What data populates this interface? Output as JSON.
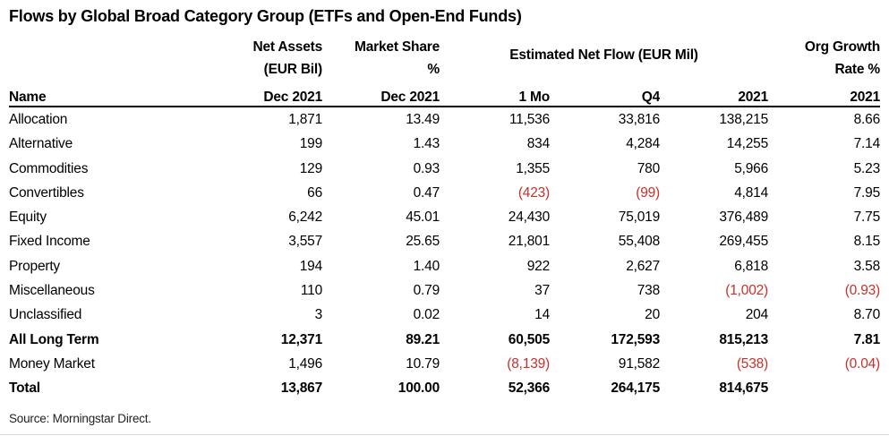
{
  "title": "Flows by Global Broad Category Group (ETFs and Open-End Funds)",
  "colors": {
    "negative": "#c8302c",
    "text": "#000000",
    "header_rule": "#000000",
    "bottom_rule": "#d9d9d9"
  },
  "table": {
    "header": {
      "name_label": "Name",
      "net_assets": {
        "line1": "Net Assets",
        "line2": "(EUR Bil)",
        "line3": "Dec 2021"
      },
      "market_share": {
        "line1": "Market Share",
        "line2": "%",
        "line3": "Dec 2021"
      },
      "net_flow_group": "Estimated Net Flow (EUR Mil)",
      "flow_1mo": "1 Mo",
      "flow_q4": "Q4",
      "flow_2021": "2021",
      "org_growth": {
        "line1": "Org Growth",
        "line2": "Rate %",
        "line3": "2021"
      }
    },
    "rows": [
      {
        "name": "Allocation",
        "bold": false,
        "values": [
          "1,871",
          "13.49",
          "11,536",
          "33,816",
          "138,215",
          "8.66"
        ]
      },
      {
        "name": "Alternative",
        "bold": false,
        "values": [
          "199",
          "1.43",
          "834",
          "4,284",
          "14,255",
          "7.14"
        ]
      },
      {
        "name": "Commodities",
        "bold": false,
        "values": [
          "129",
          "0.93",
          "1,355",
          "780",
          "5,966",
          "5.23"
        ]
      },
      {
        "name": "Convertibles",
        "bold": false,
        "values": [
          "66",
          "0.47",
          "(423)",
          "(99)",
          "4,814",
          "7.95"
        ]
      },
      {
        "name": "Equity",
        "bold": false,
        "values": [
          "6,242",
          "45.01",
          "24,430",
          "75,019",
          "376,489",
          "7.75"
        ]
      },
      {
        "name": "Fixed Income",
        "bold": false,
        "values": [
          "3,557",
          "25.65",
          "21,801",
          "55,408",
          "269,455",
          "8.15"
        ]
      },
      {
        "name": "Property",
        "bold": false,
        "values": [
          "194",
          "1.40",
          "922",
          "2,627",
          "6,818",
          "3.58"
        ]
      },
      {
        "name": "Miscellaneous",
        "bold": false,
        "values": [
          "110",
          "0.79",
          "37",
          "738",
          "(1,002)",
          "(0.93)"
        ]
      },
      {
        "name": "Unclassified",
        "bold": false,
        "values": [
          "3",
          "0.02",
          "14",
          "20",
          "204",
          "8.70"
        ]
      },
      {
        "name": "All Long Term",
        "bold": true,
        "values": [
          "12,371",
          "89.21",
          "60,505",
          "172,593",
          "815,213",
          "7.81"
        ]
      },
      {
        "name": "Money Market",
        "bold": false,
        "values": [
          "1,496",
          "10.79",
          "(8,139)",
          "91,582",
          "(538)",
          "(0.04)"
        ]
      },
      {
        "name": "Total",
        "bold": true,
        "values": [
          "13,867",
          "100.00",
          "52,366",
          "264,175",
          "814,675",
          ""
        ]
      }
    ]
  },
  "source_note": "Source: Morningstar Direct."
}
